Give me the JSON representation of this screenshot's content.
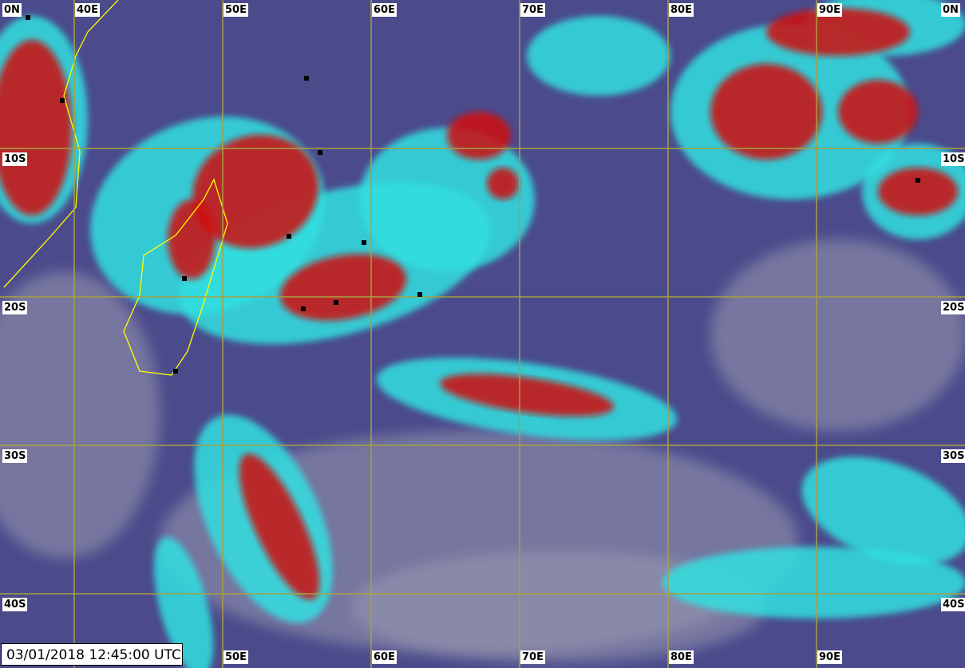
{
  "map": {
    "type": "infrared satellite imagery",
    "longitude_labels_top": [
      "40E",
      "50E",
      "60E",
      "70E",
      "80E",
      "90E"
    ],
    "longitude_labels_bottom": [
      "50E",
      "60E",
      "70E",
      "80E",
      "90E"
    ],
    "latitude_labels_left": [
      "0N",
      "10S",
      "20S",
      "30S",
      "40S"
    ],
    "latitude_labels_right": [
      "0N",
      "10S",
      "20S",
      "30S",
      "40S"
    ],
    "timestamp": "03/01/2018 12:45:00 UTC",
    "colors": {
      "ocean": "#4b4b8c",
      "cold_cloud_tops": "#d01010",
      "cloud_cyan": "#30e0e0",
      "low_cloud": "#9a9ab0",
      "grid": "#a8a040",
      "coastline": "#ffff00"
    }
  }
}
